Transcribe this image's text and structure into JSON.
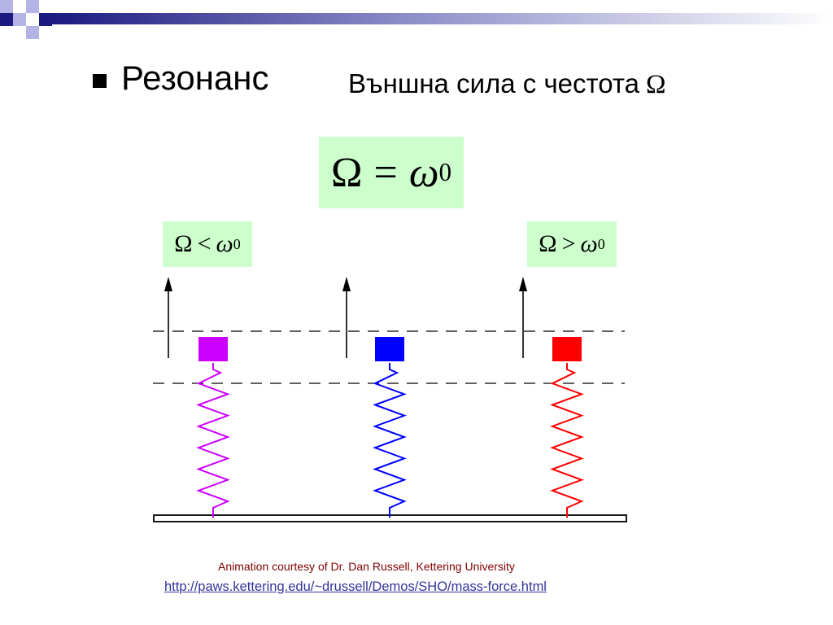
{
  "slide": {
    "title": "Резонанс",
    "subtitle_text": "Външна сила с честота",
    "subtitle_symbol": "Ω"
  },
  "equations": {
    "center": {
      "lhs": "Ω",
      "op": "=",
      "rhs": "ω",
      "sub": "0"
    },
    "left": {
      "lhs": "Ω",
      "op": "<",
      "rhs": "ω",
      "sub": "0"
    },
    "right": {
      "lhs": "Ω",
      "op": ">",
      "rhs": "ω",
      "sub": "0"
    }
  },
  "oscillators": [
    {
      "color": "#cc00ff"
    },
    {
      "color": "#0000ff"
    },
    {
      "color": "#ff0000"
    }
  ],
  "colors": {
    "deco_dark": "#1a1a80",
    "deco_light": "#b3b3e6",
    "equation_bg": "#ccffcc",
    "credit": "#800000",
    "link": "#333399"
  },
  "footer": {
    "credit": "Animation courtesy of Dr. Dan Russell, Kettering University",
    "link": "http://paws.kettering.edu/~drussell/Demos/SHO/mass-force.html"
  }
}
